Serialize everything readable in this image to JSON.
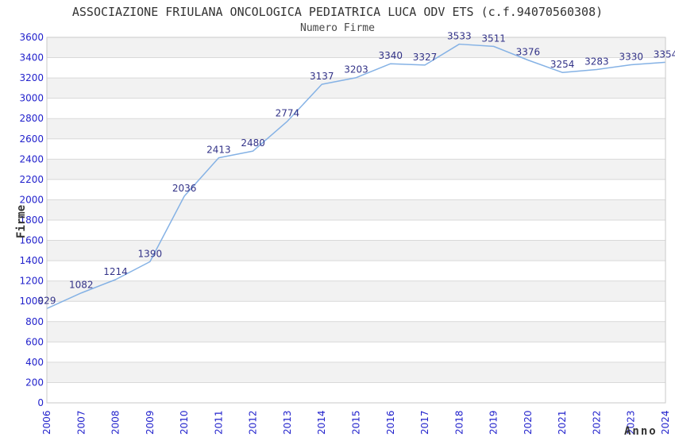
{
  "chart_data": {
    "type": "line",
    "title": "ASSOCIAZIONE FRIULANA ONCOLOGICA PEDIATRICA LUCA ODV ETS (c.f.94070560308)",
    "subtitle": "Numero Firme",
    "xlabel": "Anno",
    "ylabel": "Firme",
    "categories": [
      "2006",
      "2007",
      "2008",
      "2009",
      "2010",
      "2011",
      "2012",
      "2013",
      "2014",
      "2015",
      "2016",
      "2017",
      "2018",
      "2019",
      "2020",
      "2021",
      "2022",
      "2023",
      "2024"
    ],
    "values": [
      929,
      1082,
      1214,
      1390,
      2036,
      2413,
      2480,
      2774,
      3137,
      3203,
      3340,
      3327,
      3533,
      3511,
      3376,
      3254,
      3283,
      3330,
      3354
    ],
    "ylim": [
      0,
      3600
    ],
    "ytick_step": 200,
    "grid": "on",
    "band_fill": "alternating",
    "legend": "none",
    "colors": {
      "line": "#85b2e5",
      "tick_label": "#2222cc",
      "point_label": "#333388",
      "band": "#f2f2f2",
      "grid_line": "#d9d9d9",
      "plot_border": "#c9c9c9",
      "title_text": "#333333",
      "axis_title_text": "#333333"
    }
  }
}
